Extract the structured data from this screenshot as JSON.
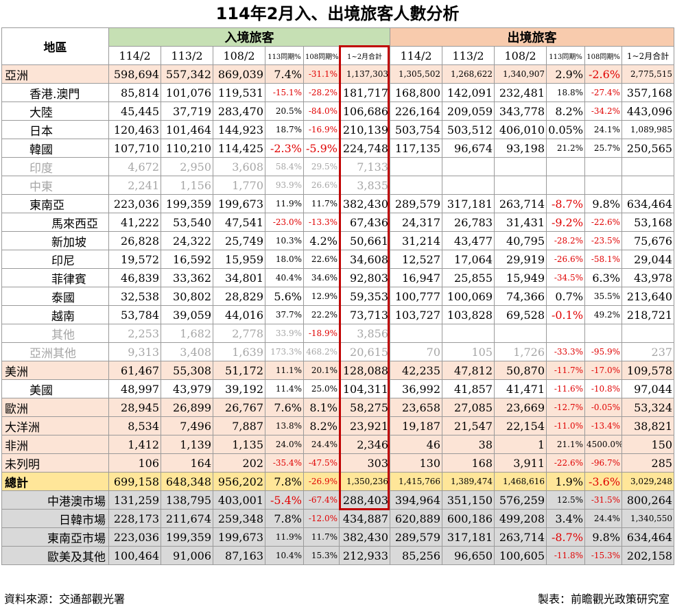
{
  "title": "114年2月入、出境旅客人數分析",
  "header": {
    "region": "地區",
    "inbound": "入境旅客",
    "outbound": "出境旅客",
    "cols": [
      "114/2",
      "113/2",
      "108/2",
      "113同期%",
      "108同期%",
      "1~2月合計"
    ]
  },
  "rows": [
    {
      "name": "亞洲",
      "kind": "cont",
      "indent": 0,
      "in": [
        "598,694",
        "557,342",
        "869,039",
        "7.4%",
        "-31.1%",
        "1,137,303"
      ],
      "out": [
        "1,305,502",
        "1,268,622",
        "1,340,907",
        "2.9%",
        "-2.6%",
        "2,775,515"
      ]
    },
    {
      "name": "香港.澳門",
      "kind": "n",
      "indent": 1,
      "in": [
        "85,814",
        "101,076",
        "119,531",
        "-15.1%",
        "-28.2%",
        "181,717"
      ],
      "out": [
        "168,800",
        "142,091",
        "232,481",
        "18.8%",
        "-27.4%",
        "357,168"
      ]
    },
    {
      "name": "大陸",
      "kind": "n",
      "indent": 1,
      "in": [
        "45,445",
        "37,719",
        "283,470",
        "20.5%",
        "-84.0%",
        "106,686"
      ],
      "out": [
        "226,164",
        "209,059",
        "343,778",
        "8.2%",
        "-34.2%",
        "443,096"
      ]
    },
    {
      "name": "日本",
      "kind": "n",
      "indent": 1,
      "in": [
        "120,463",
        "101,464",
        "144,923",
        "18.7%",
        "-16.9%",
        "210,139"
      ],
      "out": [
        "503,754",
        "503,512",
        "406,010",
        "0.05%",
        "24.1%",
        "1,089,985"
      ]
    },
    {
      "name": "韓國",
      "kind": "n",
      "indent": 1,
      "in": [
        "107,710",
        "110,210",
        "114,425",
        "-2.3%",
        "-5.9%",
        "224,748"
      ],
      "out": [
        "117,135",
        "96,674",
        "93,198",
        "21.2%",
        "25.7%",
        "250,565"
      ]
    },
    {
      "name": "印度",
      "kind": "g",
      "indent": 1,
      "in": [
        "4,672",
        "2,950",
        "3,608",
        "58.4%",
        "29.5%",
        "7,133"
      ],
      "out": [
        "",
        "",
        "",
        "",
        "",
        ""
      ]
    },
    {
      "name": "中東",
      "kind": "g",
      "indent": 1,
      "in": [
        "2,241",
        "1,156",
        "1,770",
        "93.9%",
        "26.6%",
        "3,835"
      ],
      "out": [
        "",
        "",
        "",
        "",
        "",
        ""
      ]
    },
    {
      "name": "東南亞",
      "kind": "n",
      "indent": 1,
      "in": [
        "223,036",
        "199,359",
        "199,673",
        "11.9%",
        "11.7%",
        "382,430"
      ],
      "out": [
        "289,579",
        "317,181",
        "263,714",
        "-8.7%",
        "9.8%",
        "634,464"
      ]
    },
    {
      "name": "馬來西亞",
      "kind": "n",
      "indent": 2,
      "in": [
        "41,222",
        "53,540",
        "47,541",
        "-23.0%",
        "-13.3%",
        "67,436"
      ],
      "out": [
        "24,317",
        "26,783",
        "31,431",
        "-9.2%",
        "-22.6%",
        "53,168"
      ]
    },
    {
      "name": "新加坡",
      "kind": "n",
      "indent": 2,
      "in": [
        "26,828",
        "24,322",
        "25,749",
        "10.3%",
        "4.2%",
        "50,661"
      ],
      "out": [
        "31,214",
        "43,477",
        "40,795",
        "-28.2%",
        "-23.5%",
        "75,676"
      ]
    },
    {
      "name": "印尼",
      "kind": "n",
      "indent": 2,
      "in": [
        "19,572",
        "16,592",
        "15,959",
        "18.0%",
        "22.6%",
        "34,608"
      ],
      "out": [
        "12,527",
        "17,064",
        "29,919",
        "-26.6%",
        "-58.1%",
        "29,044"
      ]
    },
    {
      "name": "菲律賓",
      "kind": "n",
      "indent": 2,
      "in": [
        "46,839",
        "33,362",
        "34,801",
        "40.4%",
        "34.6%",
        "92,803"
      ],
      "out": [
        "16,947",
        "25,855",
        "15,949",
        "-34.5%",
        "6.3%",
        "43,978"
      ]
    },
    {
      "name": "泰國",
      "kind": "n",
      "indent": 2,
      "in": [
        "32,538",
        "30,802",
        "28,829",
        "5.6%",
        "12.9%",
        "59,353"
      ],
      "out": [
        "100,777",
        "100,069",
        "74,366",
        "0.7%",
        "35.5%",
        "213,640"
      ]
    },
    {
      "name": "越南",
      "kind": "n",
      "indent": 2,
      "in": [
        "53,784",
        "39,059",
        "44,016",
        "37.7%",
        "22.2%",
        "73,713"
      ],
      "out": [
        "103,727",
        "103,828",
        "69,528",
        "-0.1%",
        "49.2%",
        "218,721"
      ]
    },
    {
      "name": "其他",
      "kind": "g",
      "indent": 2,
      "in": [
        "2,253",
        "1,682",
        "2,778",
        "33.9%",
        "-18.9%",
        "3,856"
      ],
      "out": [
        "",
        "",
        "",
        "",
        "",
        ""
      ]
    },
    {
      "name": "亞洲其他",
      "kind": "g",
      "indent": 1,
      "in": [
        "9,313",
        "3,408",
        "1,639",
        "173.3%",
        "468.2%",
        "20,615"
      ],
      "out": [
        "70",
        "105",
        "1,726",
        "-33.3%",
        "-95.9%",
        "237"
      ]
    },
    {
      "name": "美洲",
      "kind": "cont",
      "indent": 0,
      "in": [
        "61,467",
        "55,308",
        "51,172",
        "11.1%",
        "20.1%",
        "128,088"
      ],
      "out": [
        "42,235",
        "47,812",
        "50,870",
        "-11.7%",
        "-17.0%",
        "109,578"
      ]
    },
    {
      "name": "美國",
      "kind": "n",
      "indent": 1,
      "in": [
        "48,997",
        "43,979",
        "39,192",
        "11.4%",
        "25.0%",
        "104,311"
      ],
      "out": [
        "36,992",
        "41,857",
        "41,471",
        "-11.6%",
        "-10.8%",
        "97,044"
      ]
    },
    {
      "name": "歐洲",
      "kind": "cont",
      "indent": 0,
      "in": [
        "28,945",
        "26,899",
        "26,767",
        "7.6%",
        "8.1%",
        "58,275"
      ],
      "out": [
        "23,658",
        "27,085",
        "23,669",
        "-12.7%",
        "-0.05%",
        "53,324"
      ]
    },
    {
      "name": "大洋洲",
      "kind": "cont",
      "indent": 0,
      "in": [
        "8,534",
        "7,496",
        "7,887",
        "13.8%",
        "8.2%",
        "23,921"
      ],
      "out": [
        "19,187",
        "21,547",
        "22,154",
        "-11.0%",
        "-13.4%",
        "38,821"
      ]
    },
    {
      "name": "非洲",
      "kind": "cont",
      "indent": 0,
      "in": [
        "1,412",
        "1,139",
        "1,135",
        "24.0%",
        "24.4%",
        "2,346"
      ],
      "out": [
        "46",
        "38",
        "1",
        "21.1%",
        "4500.0%",
        "150"
      ]
    },
    {
      "name": "未列明",
      "kind": "cont",
      "indent": 0,
      "in": [
        "106",
        "164",
        "202",
        "-35.4%",
        "-47.5%",
        "303"
      ],
      "out": [
        "130",
        "168",
        "3,911",
        "-22.6%",
        "-96.7%",
        "285"
      ]
    },
    {
      "name": "總計",
      "kind": "tot",
      "indent": 0,
      "in": [
        "699,158",
        "648,348",
        "956,202",
        "7.8%",
        "-26.9%",
        "1,350,236"
      ],
      "out": [
        "1,415,766",
        "1,389,474",
        "1,468,616",
        "1.9%",
        "-3.6%",
        "3,029,248"
      ]
    },
    {
      "name": "中港澳市場",
      "kind": "mkt",
      "indent": 0,
      "in": [
        "131,259",
        "138,795",
        "403,001",
        "-5.4%",
        "-67.4%",
        "288,403"
      ],
      "out": [
        "394,964",
        "351,150",
        "576,259",
        "12.5%",
        "-31.5%",
        "800,264"
      ]
    },
    {
      "name": "日韓市場",
      "kind": "mkt",
      "indent": 0,
      "in": [
        "228,173",
        "211,674",
        "259,348",
        "7.8%",
        "-12.0%",
        "434,887"
      ],
      "out": [
        "620,889",
        "600,186",
        "499,208",
        "3.4%",
        "24.4%",
        "1,340,550"
      ]
    },
    {
      "name": "東南亞市場",
      "kind": "mkt",
      "indent": 0,
      "in": [
        "223,036",
        "199,359",
        "199,673",
        "11.9%",
        "11.7%",
        "382,430"
      ],
      "out": [
        "289,579",
        "317,181",
        "263,714",
        "-8.7%",
        "9.8%",
        "634,464"
      ]
    },
    {
      "name": "歐美及其他",
      "kind": "mkt",
      "indent": 0,
      "in": [
        "100,464",
        "91,006",
        "87,163",
        "10.4%",
        "15.3%",
        "212,933"
      ],
      "out": [
        "85,256",
        "96,650",
        "100,605",
        "-11.8%",
        "-15.3%",
        "202,158"
      ]
    }
  ],
  "footer": {
    "source": "資料來源：交通部觀光署",
    "maker": "製表：前瞻觀光政策研究室"
  },
  "colors": {
    "inbound_header": "#c6e0b4",
    "outbound_header": "#f8cbad",
    "continent_row": "#fce4d6",
    "total_row": "#ffe699",
    "market_row": "#d9d9d9",
    "negative_text": "#e00000",
    "highlight_border": "#c00000"
  }
}
